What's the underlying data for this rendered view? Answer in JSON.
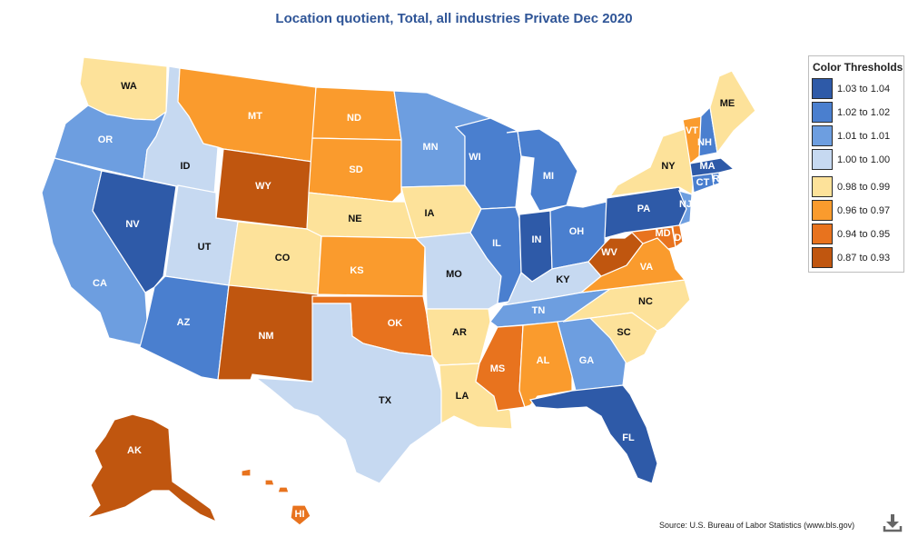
{
  "title": "Location quotient, Total, all industries Private Dec 2020",
  "legend": {
    "title": "Color Thresholds",
    "items": [
      {
        "label": "1.03 to 1.04",
        "color": "#2e5aa8"
      },
      {
        "label": "1.02 to 1.02",
        "color": "#4a7fcf"
      },
      {
        "label": "1.01 to 1.01",
        "color": "#6d9ee0"
      },
      {
        "label": "1.00 to 1.00",
        "color": "#c6d9f1"
      },
      {
        "label": "0.98 to 0.99",
        "color": "#fde29a"
      },
      {
        "label": "0.96 to 0.97",
        "color": "#fa9b2d"
      },
      {
        "label": "0.94 to 0.95",
        "color": "#e8731e"
      },
      {
        "label": "0.87 to 0.93",
        "color": "#c0560f"
      }
    ]
  },
  "states": {
    "WA": {
      "label": "WA",
      "class": 4
    },
    "OR": {
      "label": "OR",
      "class": 2
    },
    "CA": {
      "label": "CA",
      "class": 2
    },
    "NV": {
      "label": "NV",
      "class": 0
    },
    "ID": {
      "label": "ID",
      "class": 3
    },
    "MT": {
      "label": "MT",
      "class": 5
    },
    "WY": {
      "label": "WY",
      "class": 7
    },
    "UT": {
      "label": "UT",
      "class": 3
    },
    "AZ": {
      "label": "AZ",
      "class": 1
    },
    "CO": {
      "label": "CO",
      "class": 4
    },
    "NM": {
      "label": "NM",
      "class": 7
    },
    "ND": {
      "label": "ND",
      "class": 5
    },
    "SD": {
      "label": "SD",
      "class": 5
    },
    "NE": {
      "label": "NE",
      "class": 4
    },
    "KS": {
      "label": "KS",
      "class": 5
    },
    "OK": {
      "label": "OK",
      "class": 6
    },
    "TX": {
      "label": "TX",
      "class": 3
    },
    "MN": {
      "label": "MN",
      "class": 2
    },
    "IA": {
      "label": "IA",
      "class": 4
    },
    "MO": {
      "label": "MO",
      "class": 3
    },
    "AR": {
      "label": "AR",
      "class": 4
    },
    "LA": {
      "label": "LA",
      "class": 4
    },
    "WI": {
      "label": "WI",
      "class": 1
    },
    "IL": {
      "label": "IL",
      "class": 1
    },
    "MI": {
      "label": "MI",
      "class": 1
    },
    "IN": {
      "label": "IN",
      "class": 0
    },
    "OH": {
      "label": "OH",
      "class": 1
    },
    "KY": {
      "label": "KY",
      "class": 3
    },
    "TN": {
      "label": "TN",
      "class": 2
    },
    "MS": {
      "label": "MS",
      "class": 6
    },
    "AL": {
      "label": "AL",
      "class": 5
    },
    "GA": {
      "label": "GA",
      "class": 2
    },
    "FL": {
      "label": "FL",
      "class": 0
    },
    "SC": {
      "label": "SC",
      "class": 4
    },
    "NC": {
      "label": "NC",
      "class": 4
    },
    "VA": {
      "label": "VA",
      "class": 5
    },
    "WV": {
      "label": "WV",
      "class": 7
    },
    "MD": {
      "label": "MD",
      "class": 6
    },
    "DE": {
      "label": "DE",
      "class": 6
    },
    "PA": {
      "label": "PA",
      "class": 0
    },
    "NJ": {
      "label": "NJ",
      "class": 2
    },
    "NY": {
      "label": "NY",
      "class": 4
    },
    "CT": {
      "label": "CT",
      "class": 1
    },
    "RI": {
      "label": "RI",
      "class": 1
    },
    "MA": {
      "label": "MA",
      "class": 0
    },
    "VT": {
      "label": "VT",
      "class": 5
    },
    "NH": {
      "label": "NH",
      "class": 1
    },
    "ME": {
      "label": "ME",
      "class": 4
    },
    "AK": {
      "label": "AK",
      "class": 7
    },
    "HI": {
      "label": "HI",
      "class": 6
    }
  },
  "source": "Source: U.S. Bureau of Labor Statistics (www.bls.gov)",
  "download_icon": "download-icon"
}
